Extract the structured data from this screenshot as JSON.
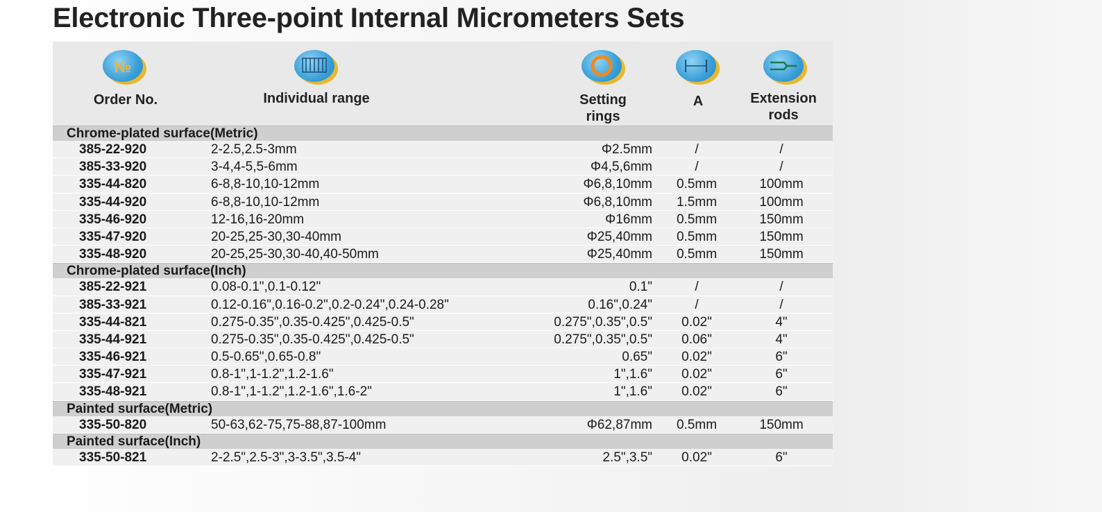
{
  "title": "Electronic Three-point Internal Micrometers Sets",
  "headers": {
    "order_icon_text": "№",
    "order": "Order No.",
    "range": "Individual range",
    "rings_line1": "Setting",
    "rings_line2": "rings",
    "a": "A",
    "ext_line1": "Extension",
    "ext_line2": "rods"
  },
  "icons": [
    "number-sign-icon",
    "scale-icon",
    "ring-icon",
    "dimension-a-icon",
    "extension-rod-icon"
  ],
  "sections": [
    {
      "title": "Chrome-plated surface(Metric)",
      "rows": [
        {
          "order": "385-22-920",
          "range": "2-2.5,2.5-3mm",
          "rings": "Φ2.5mm",
          "a": "/",
          "ext": "/"
        },
        {
          "order": "385-33-920",
          "range": "3-4,4-5,5-6mm",
          "rings": "Φ4,5,6mm",
          "a": "/",
          "ext": "/"
        },
        {
          "order": "335-44-820",
          "range": "6-8,8-10,10-12mm",
          "rings": "Φ6,8,10mm",
          "a": "0.5mm",
          "ext": "100mm"
        },
        {
          "order": "335-44-920",
          "range": "6-8,8-10,10-12mm",
          "rings": "Φ6,8,10mm",
          "a": "1.5mm",
          "ext": "100mm"
        },
        {
          "order": "335-46-920",
          "range": "12-16,16-20mm",
          "rings": "Φ16mm",
          "a": "0.5mm",
          "ext": "150mm"
        },
        {
          "order": "335-47-920",
          "range": "20-25,25-30,30-40mm",
          "rings": "Φ25,40mm",
          "a": "0.5mm",
          "ext": "150mm"
        },
        {
          "order": "335-48-920",
          "range": "20-25,25-30,30-40,40-50mm",
          "rings": "Φ25,40mm",
          "a": "0.5mm",
          "ext": "150mm"
        }
      ]
    },
    {
      "title": "Chrome-plated surface(Inch)",
      "rows": [
        {
          "order": "385-22-921",
          "range": "0.08-0.1\",0.1-0.12\"",
          "rings": "0.1\"",
          "a": "/",
          "ext": "/"
        },
        {
          "order": "385-33-921",
          "range": "0.12-0.16\",0.16-0.2\",0.2-0.24\",0.24-0.28\"",
          "rings": "0.16\",0.24\"",
          "a": "/",
          "ext": "/"
        },
        {
          "order": "335-44-821",
          "range": "0.275-0.35\",0.35-0.425\",0.425-0.5\"",
          "rings": "0.275\",0.35\",0.5\"",
          "a": "0.02\"",
          "ext": "4\""
        },
        {
          "order": "335-44-921",
          "range": "0.275-0.35\",0.35-0.425\",0.425-0.5\"",
          "rings": "0.275\",0.35\",0.5\"",
          "a": "0.06\"",
          "ext": "4\""
        },
        {
          "order": "335-46-921",
          "range": "0.5-0.65\",0.65-0.8\"",
          "rings": "0.65\"",
          "a": "0.02\"",
          "ext": "6\""
        },
        {
          "order": "335-47-921",
          "range": "0.8-1\",1-1.2\",1.2-1.6\"",
          "rings": "1\",1.6\"",
          "a": "0.02\"",
          "ext": "6\""
        },
        {
          "order": "335-48-921",
          "range": "0.8-1\",1-1.2\",1.2-1.6\",1.6-2\"",
          "rings": "1\",1.6\"",
          "a": "0.02\"",
          "ext": "6\""
        }
      ]
    },
    {
      "title": "Painted surface(Metric)",
      "rows": [
        {
          "order": "335-50-820",
          "range": "50-63,62-75,75-88,87-100mm",
          "rings": "Φ62,87mm",
          "a": "0.5mm",
          "ext": "150mm"
        }
      ]
    },
    {
      "title": "Painted surface(Inch)",
      "rows": [
        {
          "order": "335-50-821",
          "range": "2-2.5\",2.5-3\",3-3.5\",3.5-4\"",
          "rings": "2.5\",3.5\"",
          "a": "0.02\"",
          "ext": "6\""
        }
      ]
    }
  ]
}
